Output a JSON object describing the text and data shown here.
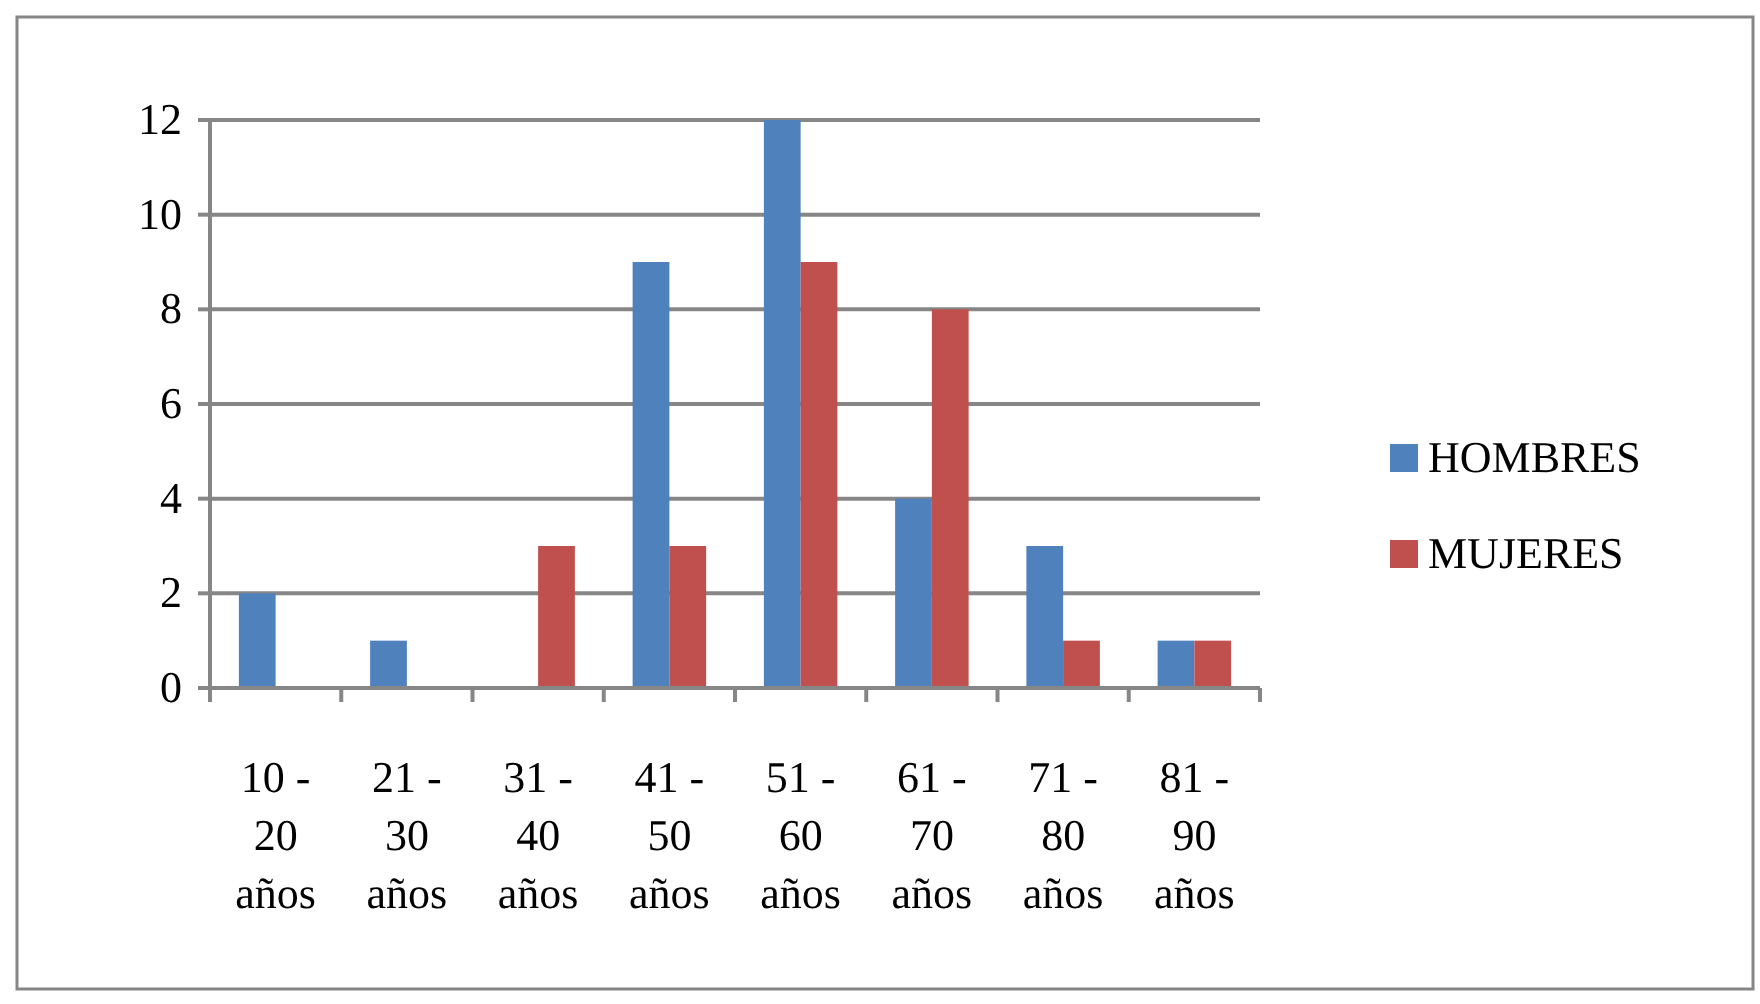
{
  "chart_data": {
    "type": "bar",
    "categories": [
      "10 - 20 años",
      "21 - 30 años",
      "31 - 40 años",
      "41 - 50 años",
      "51 - 60 años",
      "61 - 70 años",
      "71 - 80 años",
      "81 - 90 años"
    ],
    "series": [
      {
        "name": "HOMBRES",
        "color": "#4f81bd",
        "values": [
          2,
          1,
          0,
          9,
          12,
          4,
          3,
          1
        ]
      },
      {
        "name": "MUJERES",
        "color": "#c0504d",
        "values": [
          0,
          0,
          3,
          3,
          9,
          8,
          1,
          1
        ]
      }
    ],
    "ylim": [
      0,
      12
    ],
    "yticks": [
      0,
      2,
      4,
      6,
      8,
      10,
      12
    ],
    "grid": "y",
    "legend": "right"
  }
}
